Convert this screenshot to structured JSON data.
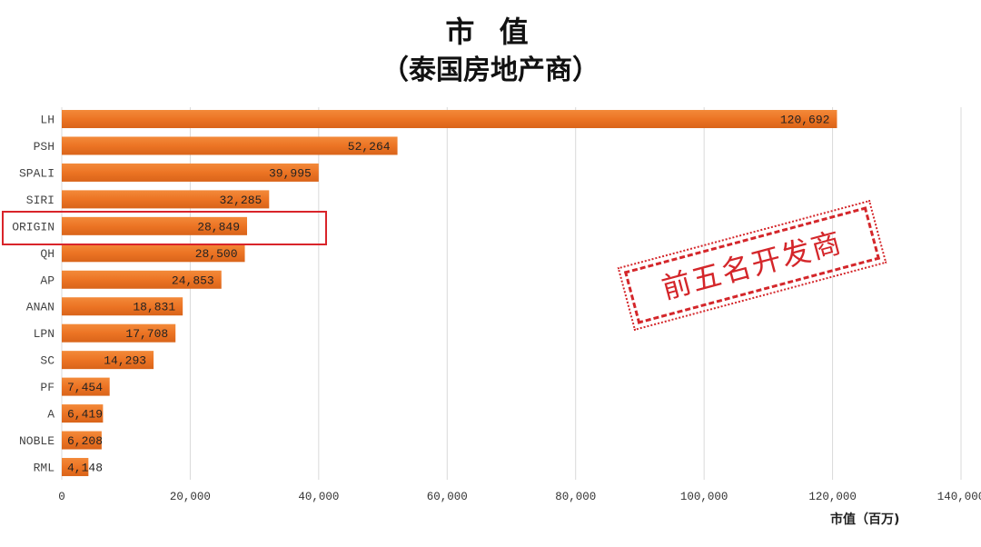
{
  "chart_data": {
    "type": "bar",
    "orientation": "horizontal",
    "title": "市 值",
    "subtitle": "（泰国房地产商）",
    "xlabel": "市值（百万)",
    "ylabel": "",
    "categories": [
      "LH",
      "PSH",
      "SPALI",
      "SIRI",
      "ORIGIN",
      "QH",
      "AP",
      "ANAN",
      "LPN",
      "SC",
      "PF",
      "A",
      "NOBLE",
      "RML"
    ],
    "values": [
      120692,
      52264,
      39995,
      32285,
      28849,
      28500,
      24853,
      18831,
      17708,
      14293,
      7454,
      6419,
      6208,
      4148
    ],
    "value_labels": [
      "120,692",
      "52,264",
      "39,995",
      "32,285",
      "28,849",
      "28,500",
      "24,853",
      "18,831",
      "17,708",
      "14,293",
      "7,454",
      "6,419",
      "6,208",
      "4,148"
    ],
    "xlim": [
      0,
      140000
    ],
    "xticks": [
      "0",
      "20,000",
      "40,000",
      "60,000",
      "80,000",
      "100,000",
      "120,000",
      "140,000"
    ],
    "grid": true,
    "bar_color": "#ec7424",
    "highlight": "ORIGIN",
    "highlight_color": "#d9242a",
    "annotation": "前五名开发商"
  }
}
